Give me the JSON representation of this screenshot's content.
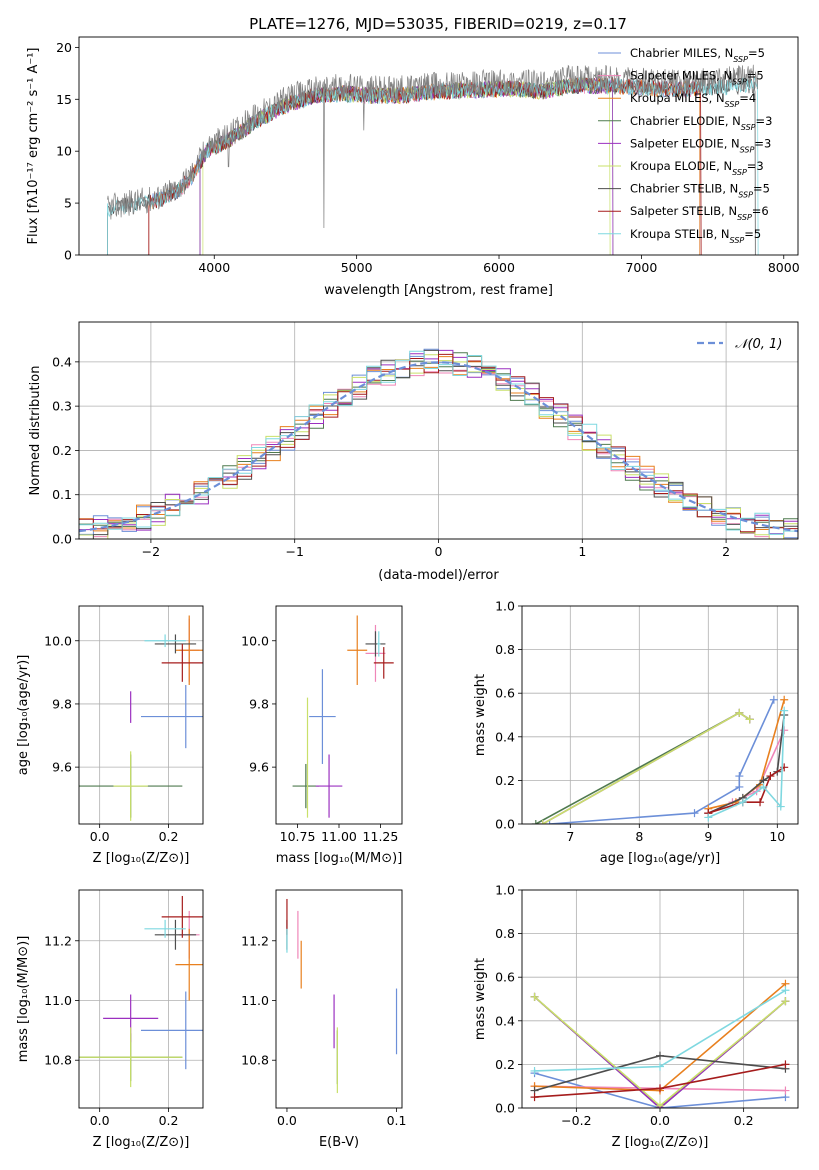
{
  "figure": {
    "title": "PLATE=1276, MJD=53035, FIBERID=0219, z=0.17"
  },
  "colors": {
    "chabrier_miles": "#6c8fd8",
    "salpeter_miles": "#ef86b8",
    "kroupa_miles": "#e8801f",
    "chabrier_elodie": "#4f7a4f",
    "salpeter_elodie": "#9b30c0",
    "kroupa_elodie": "#c9e06a",
    "chabrier_stelib": "#4d4d4d",
    "salpeter_stelib": "#a51c1c",
    "kroupa_stelib": "#7fd8e0",
    "normal_curve": "#6c8fd8",
    "spectrum_data": "#808080"
  },
  "chart_data": [
    {
      "id": "spectrum",
      "type": "line",
      "title": "PLATE=1276, MJD=53035, FIBERID=0219, z=0.17",
      "xlabel": "wavelength [Angstrom, rest frame]",
      "ylabel": "Flux [fλ10⁻¹⁷ erg cm⁻² s⁻¹ A⁻¹]",
      "xlim": [
        3050,
        8100
      ],
      "ylim": [
        0,
        21
      ],
      "xticks": [
        "4000",
        "5000",
        "6000",
        "7000",
        "8000"
      ],
      "yticks": [
        "0",
        "5",
        "10",
        "15",
        "20"
      ],
      "legend_position": "top-right",
      "legend": [
        {
          "label": "Chabrier MILES, N",
          "sub": "SSP",
          "suffix": "=5",
          "color_key": "chabrier_miles"
        },
        {
          "label": "Salpeter MILES, N",
          "sub": "SSP",
          "suffix": "=5",
          "color_key": "salpeter_miles"
        },
        {
          "label": "Kroupa MILES, N",
          "sub": "SSP",
          "suffix": "=4",
          "color_key": "kroupa_miles"
        },
        {
          "label": "Chabrier ELODIE, N",
          "sub": "SSP",
          "suffix": "=3",
          "color_key": "chabrier_elodie"
        },
        {
          "label": "Salpeter ELODIE, N",
          "sub": "SSP",
          "suffix": "=3",
          "color_key": "salpeter_elodie"
        },
        {
          "label": "Kroupa ELODIE, N",
          "sub": "SSP",
          "suffix": "=3",
          "color_key": "kroupa_elodie"
        },
        {
          "label": "Chabrier STELIB, N",
          "sub": "SSP",
          "suffix": "=5",
          "color_key": "chabrier_stelib"
        },
        {
          "label": "Salpeter STELIB, N",
          "sub": "SSP",
          "suffix": "=6",
          "color_key": "salpeter_stelib"
        },
        {
          "label": "Kroupa STELIB, N",
          "sub": "SSP",
          "suffix": "=5",
          "color_key": "kroupa_stelib"
        }
      ],
      "continuum": [
        [
          3250,
          4.5
        ],
        [
          3400,
          5.0
        ],
        [
          3600,
          5.5
        ],
        [
          3750,
          6.5
        ],
        [
          3850,
          8.0
        ],
        [
          3950,
          10.5
        ],
        [
          4100,
          11.5
        ],
        [
          4300,
          13.5
        ],
        [
          4500,
          15.0
        ],
        [
          4700,
          16.0
        ],
        [
          4900,
          16.2
        ],
        [
          5100,
          16.0
        ],
        [
          5300,
          16.0
        ],
        [
          5500,
          16.3
        ],
        [
          5700,
          16.5
        ],
        [
          5900,
          16.6
        ],
        [
          6100,
          16.7
        ],
        [
          6300,
          16.4
        ],
        [
          6500,
          17.0
        ],
        [
          6700,
          17.0
        ],
        [
          6900,
          16.9
        ],
        [
          7100,
          16.7
        ],
        [
          7300,
          16.6
        ],
        [
          7500,
          16.8
        ],
        [
          7700,
          17.0
        ],
        [
          7800,
          17.1
        ]
      ],
      "model_ranges": [
        {
          "key": "chabrier_miles",
          "from": 3540,
          "to": 7410
        },
        {
          "key": "salpeter_miles",
          "from": 3540,
          "to": 7410
        },
        {
          "key": "kroupa_miles",
          "from": 3540,
          "to": 7410
        },
        {
          "key": "chabrier_elodie",
          "from": 3900,
          "to": 6800
        },
        {
          "key": "salpeter_elodie",
          "from": 3900,
          "to": 6800
        },
        {
          "key": "kroupa_elodie",
          "from": 3920,
          "to": 6780
        },
        {
          "key": "chabrier_stelib",
          "from": 3250,
          "to": 7800
        },
        {
          "key": "salpeter_stelib",
          "from": 3540,
          "to": 7420
        },
        {
          "key": "kroupa_stelib",
          "from": 3250,
          "to": 7820
        }
      ]
    },
    {
      "id": "residuals",
      "type": "bar",
      "xlabel": "(data-model)/error",
      "ylabel": "Normed distribution",
      "xlim": [
        -2.5,
        2.5
      ],
      "ylim": [
        0,
        0.49
      ],
      "xticks": [
        "−2",
        "−1",
        "0",
        "1",
        "2"
      ],
      "yticks": [
        "0.0",
        "0.1",
        "0.2",
        "0.3",
        "0.4"
      ],
      "legend_position": "top-right",
      "curve_label": "𝒩(0, 1)",
      "bin_width": 0.1,
      "series": [
        {
          "color_key": "chabrier_miles",
          "seed": 1
        },
        {
          "color_key": "salpeter_miles",
          "seed": 2
        },
        {
          "color_key": "kroupa_miles",
          "seed": 3
        },
        {
          "color_key": "chabrier_elodie",
          "seed": 4
        },
        {
          "color_key": "salpeter_elodie",
          "seed": 5
        },
        {
          "color_key": "kroupa_elodie",
          "seed": 6
        },
        {
          "color_key": "chabrier_stelib",
          "seed": 7
        },
        {
          "color_key": "salpeter_stelib",
          "seed": 8
        },
        {
          "color_key": "kroupa_stelib",
          "seed": 9
        }
      ]
    },
    {
      "id": "z-age",
      "type": "scatter",
      "xlabel": "Z [log₁₀(Z/Z⊙)]",
      "ylabel": "age  [log₁₀(age/yr)]",
      "xlim": [
        -0.06,
        0.3
      ],
      "ylim": [
        9.42,
        10.11
      ],
      "xticks": [
        "0.0",
        "0.2"
      ],
      "xtick_values": [
        0,
        0.2
      ],
      "yticks": [
        "9.6",
        "9.8",
        "10.0"
      ],
      "ytick_values": [
        9.6,
        9.8,
        10.0
      ],
      "points": [
        {
          "color_key": "chabrier_miles",
          "x": 0.25,
          "y": 9.76,
          "xerr": 0.13,
          "yerr": 0.1
        },
        {
          "color_key": "salpeter_miles",
          "x": 0.26,
          "y": 9.97,
          "xerr": 0.03,
          "yerr": 0.1
        },
        {
          "color_key": "kroupa_miles",
          "x": 0.26,
          "y": 9.97,
          "xerr": 0.04,
          "yerr": 0.11
        },
        {
          "color_key": "chabrier_elodie",
          "x": 0.09,
          "y": 9.54,
          "xerr": 0.15,
          "yerr": 0.1
        },
        {
          "color_key": "salpeter_elodie",
          "x": 0.09,
          "y": 9.79,
          "xerr": 0.0,
          "yerr": 0.05
        },
        {
          "color_key": "kroupa_elodie",
          "x": 0.09,
          "y": 9.54,
          "xerr": 0.05,
          "yerr": 0.11
        },
        {
          "color_key": "chabrier_stelib",
          "x": 0.22,
          "y": 9.99,
          "xerr": 0.06,
          "yerr": 0.03
        },
        {
          "color_key": "salpeter_stelib",
          "x": 0.24,
          "y": 9.93,
          "xerr": 0.06,
          "yerr": 0.06
        },
        {
          "color_key": "kroupa_stelib",
          "x": 0.19,
          "y": 10.0,
          "xerr": 0.06,
          "yerr": 0.02
        }
      ]
    },
    {
      "id": "mass-age",
      "type": "scatter",
      "xlabel": "mass [log₁₀(M/M⊙)]",
      "ylabel": "",
      "xlim": [
        10.62,
        11.38
      ],
      "ylim": [
        9.42,
        10.11
      ],
      "xticks": [
        "10.75",
        "11.00",
        "11.25"
      ],
      "xtick_values": [
        10.75,
        11.0,
        11.25
      ],
      "yticks": [
        "9.6",
        "9.8",
        "10.0"
      ],
      "ytick_values": [
        9.6,
        9.8,
        10.0
      ],
      "points": [
        {
          "color_key": "chabrier_miles",
          "x": 10.9,
          "y": 9.76,
          "xerr": 0.08,
          "yerr": 0.15
        },
        {
          "color_key": "salpeter_miles",
          "x": 11.22,
          "y": 9.96,
          "xerr": 0.06,
          "yerr": 0.09
        },
        {
          "color_key": "kroupa_miles",
          "x": 11.11,
          "y": 9.97,
          "xerr": 0.06,
          "yerr": 0.11
        },
        {
          "color_key": "chabrier_elodie",
          "x": 10.8,
          "y": 9.54,
          "xerr": 0.08,
          "yerr": 0.07
        },
        {
          "color_key": "salpeter_elodie",
          "x": 10.94,
          "y": 9.54,
          "xerr": 0.08,
          "yerr": 0.1
        },
        {
          "color_key": "kroupa_elodie",
          "x": 10.81,
          "y": 9.63,
          "xerr": 0.0,
          "yerr": 0.19
        },
        {
          "color_key": "chabrier_stelib",
          "x": 11.22,
          "y": 9.99,
          "xerr": 0.06,
          "yerr": 0.04
        },
        {
          "color_key": "salpeter_stelib",
          "x": 11.27,
          "y": 9.93,
          "xerr": 0.06,
          "yerr": 0.05
        },
        {
          "color_key": "kroupa_stelib",
          "x": 11.24,
          "y": 9.99,
          "xerr": 0.01,
          "yerr": 0.04
        }
      ]
    },
    {
      "id": "age-weight",
      "type": "line",
      "xlabel": "age  [log₁₀(age/yr)]",
      "ylabel": "mass weight",
      "xlim": [
        6.3,
        10.3
      ],
      "ylim": [
        0,
        1
      ],
      "xticks": [
        "7",
        "8",
        "9",
        "10"
      ],
      "xtick_values": [
        7,
        8,
        9,
        10
      ],
      "yticks": [
        "0.0",
        "0.2",
        "0.4",
        "0.6",
        "0.8",
        "1.0"
      ],
      "ytick_values": [
        0,
        0.2,
        0.4,
        0.6,
        0.8,
        1.0
      ],
      "series": [
        {
          "color_key": "chabrier_miles",
          "x": [
            6.7,
            8.8,
            9.45,
            9.45,
            9.95
          ],
          "y": [
            0.0,
            0.05,
            0.17,
            0.22,
            0.57
          ]
        },
        {
          "color_key": "salpeter_miles",
          "x": [
            9.0,
            9.35,
            9.7,
            10.1
          ],
          "y": [
            0.05,
            0.1,
            0.15,
            0.43
          ]
        },
        {
          "color_key": "kroupa_miles",
          "x": [
            9.0,
            9.4,
            9.75,
            10.1
          ],
          "y": [
            0.07,
            0.1,
            0.18,
            0.57
          ]
        },
        {
          "color_key": "chabrier_elodie",
          "x": [
            6.5,
            9.45,
            9.6
          ],
          "y": [
            0.0,
            0.51,
            0.48
          ]
        },
        {
          "color_key": "salpeter_elodie",
          "x": [
            6.6,
            9.45,
            9.6
          ],
          "y": [
            0.0,
            0.51,
            0.48
          ]
        },
        {
          "color_key": "kroupa_elodie",
          "x": [
            6.6,
            9.45,
            9.6
          ],
          "y": [
            0.0,
            0.51,
            0.48
          ]
        },
        {
          "color_key": "chabrier_stelib",
          "x": [
            9.0,
            9.5,
            9.8,
            10.0,
            10.1
          ],
          "y": [
            0.05,
            0.12,
            0.2,
            0.24,
            0.5
          ]
        },
        {
          "color_key": "salpeter_stelib",
          "x": [
            9.0,
            9.5,
            9.75,
            9.9,
            10.1
          ],
          "y": [
            0.05,
            0.1,
            0.1,
            0.22,
            0.26
          ]
        },
        {
          "color_key": "kroupa_stelib",
          "x": [
            9.0,
            9.5,
            9.8,
            10.05,
            10.1
          ],
          "y": [
            0.03,
            0.1,
            0.17,
            0.08,
            0.52
          ]
        }
      ]
    },
    {
      "id": "z-mass",
      "type": "scatter",
      "xlabel": "Z [log₁₀(Z/Z⊙)]",
      "ylabel": "mass [log₁₀(M/M⊙)]",
      "xlim": [
        -0.06,
        0.3
      ],
      "ylim": [
        10.64,
        11.37
      ],
      "xticks": [
        "0.0",
        "0.2"
      ],
      "xtick_values": [
        0,
        0.2
      ],
      "yticks": [
        "10.8",
        "11.0",
        "11.2"
      ],
      "ytick_values": [
        10.8,
        11.0,
        11.2
      ],
      "points": [
        {
          "color_key": "chabrier_miles",
          "x": 0.25,
          "y": 10.9,
          "xerr": 0.13,
          "yerr": 0.13
        },
        {
          "color_key": "salpeter_miles",
          "x": 0.26,
          "y": 11.22,
          "xerr": 0.03,
          "yerr": 0.08
        },
        {
          "color_key": "kroupa_miles",
          "x": 0.26,
          "y": 11.12,
          "xerr": 0.04,
          "yerr": 0.12
        },
        {
          "color_key": "chabrier_elodie",
          "x": 0.09,
          "y": 10.81,
          "xerr": 0.15,
          "yerr": 0.08
        },
        {
          "color_key": "salpeter_elodie",
          "x": 0.09,
          "y": 10.94,
          "xerr": 0.08,
          "yerr": 0.08
        },
        {
          "color_key": "kroupa_elodie",
          "x": 0.09,
          "y": 10.81,
          "xerr": 0.15,
          "yerr": 0.1
        },
        {
          "color_key": "chabrier_stelib",
          "x": 0.22,
          "y": 11.22,
          "xerr": 0.06,
          "yerr": 0.05
        },
        {
          "color_key": "salpeter_stelib",
          "x": 0.24,
          "y": 11.28,
          "xerr": 0.06,
          "yerr": 0.07
        },
        {
          "color_key": "kroupa_stelib",
          "x": 0.19,
          "y": 11.24,
          "xerr": 0.06,
          "yerr": 0.03
        }
      ]
    },
    {
      "id": "ebv-mass",
      "type": "scatter",
      "xlabel": "E(B-V)",
      "ylabel": "",
      "xlim": [
        -0.01,
        0.105
      ],
      "ylim": [
        10.64,
        11.37
      ],
      "xticks": [
        "0.0",
        "0.1"
      ],
      "xtick_values": [
        0,
        0.1
      ],
      "yticks": [
        "10.8",
        "11.0",
        "11.2"
      ],
      "ytick_values": [
        10.8,
        11.0,
        11.2
      ],
      "points": [
        {
          "color_key": "chabrier_miles",
          "x": 0.1,
          "y": 10.93,
          "xerr": 0.0,
          "yerr": 0.11
        },
        {
          "color_key": "salpeter_miles",
          "x": 0.01,
          "y": 11.22,
          "xerr": 0.0,
          "yerr": 0.08
        },
        {
          "color_key": "kroupa_miles",
          "x": 0.013,
          "y": 11.12,
          "xerr": 0.0,
          "yerr": 0.08
        },
        {
          "color_key": "chabrier_elodie",
          "x": 0.046,
          "y": 10.81,
          "xerr": 0.0,
          "yerr": 0.09
        },
        {
          "color_key": "salpeter_elodie",
          "x": 0.043,
          "y": 10.93,
          "xerr": 0.0,
          "yerr": 0.09
        },
        {
          "color_key": "kroupa_elodie",
          "x": 0.046,
          "y": 10.8,
          "xerr": 0.0,
          "yerr": 0.11
        },
        {
          "color_key": "chabrier_stelib",
          "x": 0.0,
          "y": 11.22,
          "xerr": 0.0,
          "yerr": 0.05
        },
        {
          "color_key": "salpeter_stelib",
          "x": 0.0,
          "y": 11.28,
          "xerr": 0.0,
          "yerr": 0.06
        },
        {
          "color_key": "kroupa_stelib",
          "x": 0.0,
          "y": 11.2,
          "xerr": 0.0,
          "yerr": 0.04
        }
      ]
    },
    {
      "id": "z-weight",
      "type": "line",
      "xlabel": "Z [log₁₀(Z/Z⊙)]",
      "ylabel": "mass weight",
      "xlim": [
        -0.33,
        0.33
      ],
      "ylim": [
        0,
        1
      ],
      "xticks": [
        "−0.2",
        "0.0",
        "0.2"
      ],
      "xtick_values": [
        -0.2,
        0,
        0.2
      ],
      "yticks": [
        "0.0",
        "0.2",
        "0.4",
        "0.6",
        "0.8",
        "1.0"
      ],
      "ytick_values": [
        0,
        0.2,
        0.4,
        0.6,
        0.8,
        1.0
      ],
      "series": [
        {
          "color_key": "chabrier_miles",
          "x": [
            -0.3,
            0.0,
            0.3
          ],
          "y": [
            0.16,
            0.0,
            0.05
          ]
        },
        {
          "color_key": "salpeter_miles",
          "x": [
            -0.3,
            0.0,
            0.3
          ],
          "y": [
            0.1,
            0.09,
            0.08
          ]
        },
        {
          "color_key": "kroupa_miles",
          "x": [
            -0.3,
            0.0,
            0.3
          ],
          "y": [
            0.1,
            0.08,
            0.57
          ]
        },
        {
          "color_key": "chabrier_elodie",
          "x": [
            -0.3,
            0.0,
            0.3
          ],
          "y": [
            0.51,
            0.0,
            0.49
          ]
        },
        {
          "color_key": "salpeter_elodie",
          "x": [
            -0.3,
            0.0,
            0.3
          ],
          "y": [
            0.51,
            0.0,
            0.49
          ]
        },
        {
          "color_key": "kroupa_elodie",
          "x": [
            -0.3,
            0.0,
            0.3
          ],
          "y": [
            0.51,
            0.01,
            0.49
          ]
        },
        {
          "color_key": "chabrier_stelib",
          "x": [
            -0.3,
            0.0,
            0.3
          ],
          "y": [
            0.08,
            0.24,
            0.18
          ]
        },
        {
          "color_key": "salpeter_stelib",
          "x": [
            -0.3,
            0.0,
            0.3
          ],
          "y": [
            0.05,
            0.09,
            0.2
          ]
        },
        {
          "color_key": "kroupa_stelib",
          "x": [
            -0.3,
            0.0,
            0.3
          ],
          "y": [
            0.17,
            0.19,
            0.54
          ]
        }
      ]
    }
  ]
}
